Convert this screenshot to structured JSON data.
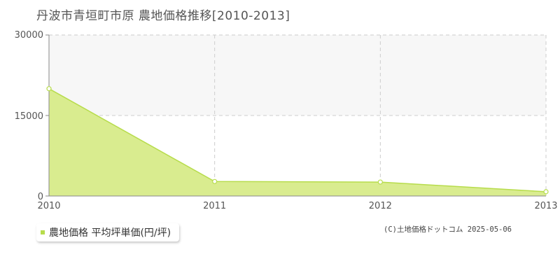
{
  "chart_data": {
    "type": "area",
    "title": "丹波市青垣町市原 農地価格推移[2010-2013]",
    "x": [
      2010,
      2011,
      2012,
      2013
    ],
    "x_tick_labels": [
      "2010",
      "2011",
      "2012",
      "2013"
    ],
    "series": [
      {
        "name": "農地価格 平均坪単価(円/坪)",
        "values": [
          20000,
          2700,
          2600,
          800
        ]
      }
    ],
    "ylim": [
      0,
      30000
    ],
    "y_ticks": [
      0,
      15000,
      30000
    ],
    "y_tick_labels": [
      "0",
      "15000",
      "30000"
    ],
    "xlabel": "",
    "ylabel": "",
    "grid": true,
    "legend_position": "bottom-left"
  },
  "legend": {
    "label": "農地価格 平均坪単価(円/坪)"
  },
  "credit": "(C)土地価格ドットコム 2025-05-06",
  "colors": {
    "area_fill": "#d9ec8f",
    "line": "#b7dc4c",
    "marker_fill": "#ffffff",
    "swatch": "#b7dc4c",
    "grid": "#cccccc",
    "band": "#f7f7f7"
  }
}
